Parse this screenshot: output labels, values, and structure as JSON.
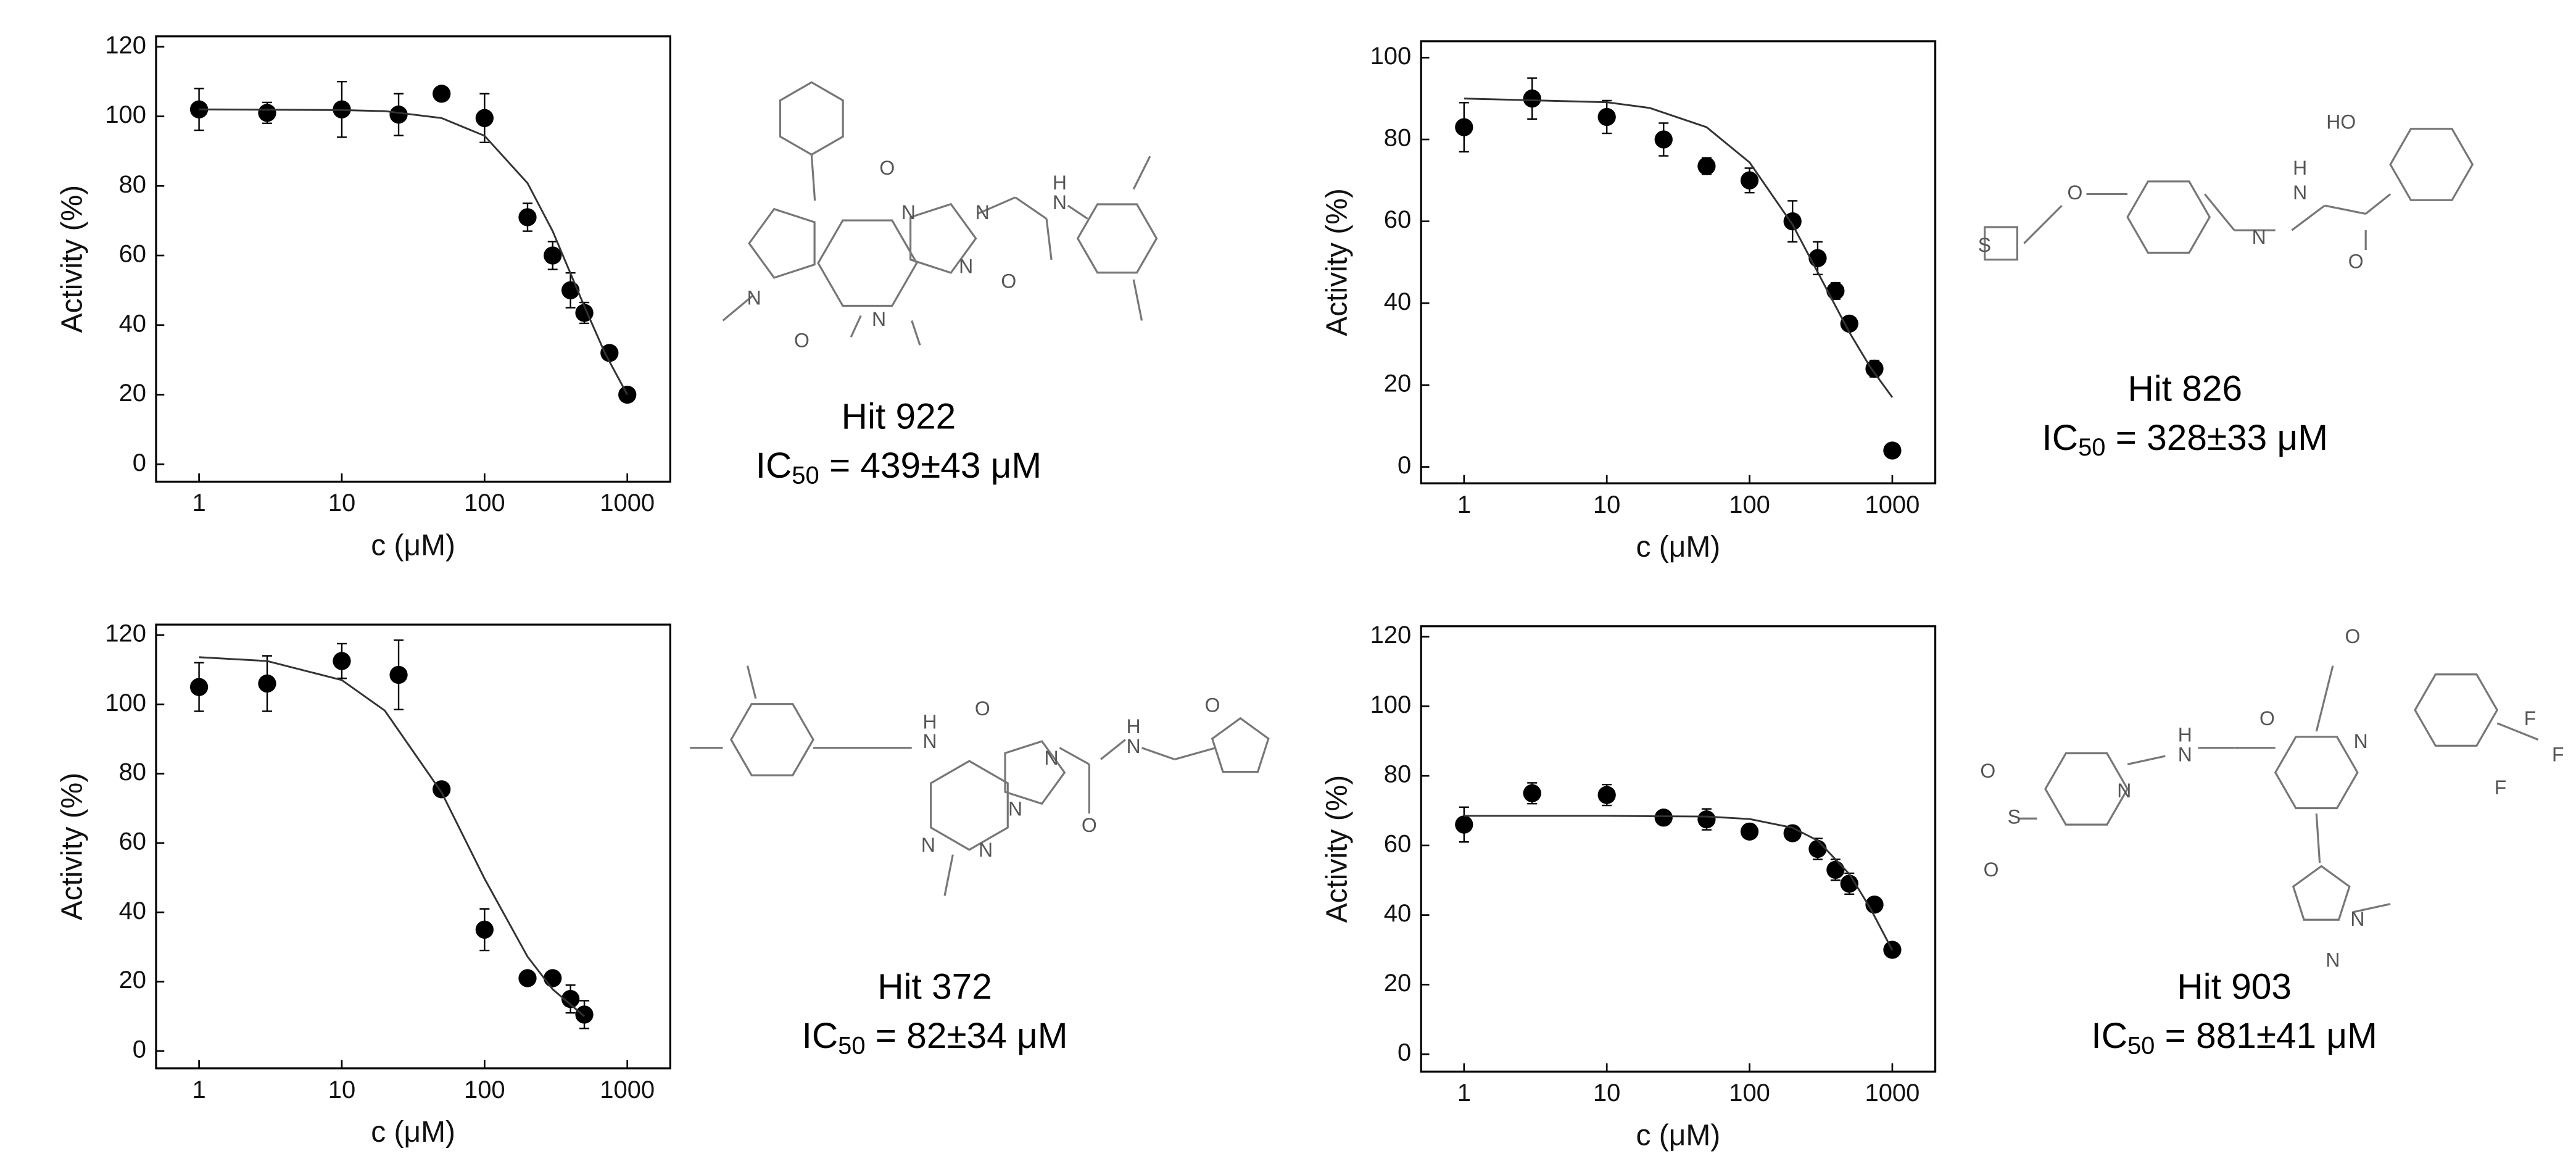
{
  "chart_data": [
    {
      "type": "scatter",
      "xlabel": "c (μM)",
      "ylabel": "Activity (%)",
      "xscale": "log",
      "xlim": [
        0.5,
        2000
      ],
      "xticks": [
        1,
        10,
        100,
        1000
      ],
      "ylim": [
        -5,
        123
      ],
      "yticks": [
        0,
        20,
        40,
        60,
        80,
        100,
        120
      ],
      "series": [
        {
          "x": [
            1,
            3,
            10,
            25,
            50,
            100,
            200,
            300,
            400,
            500,
            750,
            1000
          ],
          "values": [
            102,
            101,
            102,
            100.5,
            106.5,
            99.5,
            71,
            60,
            50,
            43.5,
            32,
            20
          ],
          "errors": [
            6,
            3,
            8,
            6,
            1,
            7,
            4,
            4,
            5,
            3,
            2,
            2
          ],
          "color": "#000000"
        },
        {
          "style": "line",
          "x": [
            1,
            10,
            20,
            50,
            100,
            200,
            300,
            500,
            700,
            1000
          ],
          "values": [
            102,
            101.8,
            101.5,
            99.5,
            94.4,
            80.8,
            67,
            45.4,
            31.8,
            20
          ],
          "color": "#333333"
        }
      ],
      "annotations": {
        "compound": "Hit 922",
        "ic50_prefix": "IC",
        "ic50_sub": "50",
        "ic50_text": " = 439±43 μM"
      },
      "structure_labels": [
        "O",
        "N",
        "N",
        "N",
        "N",
        "O",
        "N",
        "O",
        "H",
        "N"
      ]
    },
    {
      "type": "scatter",
      "xlabel": "c (μM)",
      "ylabel": "Activity (%)",
      "xscale": "log",
      "xlim": [
        0.5,
        2000
      ],
      "xticks": [
        1,
        10,
        100,
        1000
      ],
      "ylim": [
        -4,
        104
      ],
      "yticks": [
        0,
        20,
        40,
        60,
        80,
        100
      ],
      "series": [
        {
          "x": [
            1,
            3,
            10,
            25,
            50,
            100,
            200,
            300,
            400,
            500,
            750,
            1000
          ],
          "values": [
            83,
            90,
            85.5,
            80,
            73.5,
            70,
            60,
            51,
            43,
            35,
            24,
            4
          ],
          "errors": [
            6,
            5,
            4,
            4,
            2,
            3,
            5,
            4,
            2,
            1,
            2,
            1
          ],
          "color": "#000000"
        },
        {
          "style": "line",
          "x": [
            1,
            10,
            20,
            50,
            100,
            200,
            300,
            500,
            700,
            1000
          ],
          "values": [
            90,
            89.1,
            87.7,
            83,
            74.4,
            59.2,
            47.6,
            32.9,
            24.4,
            17
          ],
          "color": "#333333"
        }
      ],
      "annotations": {
        "compound": "Hit 826",
        "ic50_prefix": "IC",
        "ic50_sub": "50",
        "ic50_text": " = 328±33 μM"
      },
      "structure_labels": [
        "S",
        "O",
        "N",
        "H",
        "N",
        "HO",
        "O"
      ]
    },
    {
      "type": "scatter",
      "xlabel": "c (μM)",
      "ylabel": "Activity (%)",
      "xscale": "log",
      "xlim": [
        0.5,
        2000
      ],
      "xticks": [
        1,
        10,
        100,
        1000
      ],
      "ylim": [
        -5,
        123
      ],
      "yticks": [
        0,
        20,
        40,
        60,
        80,
        100,
        120
      ],
      "series": [
        {
          "x": [
            1,
            3,
            10,
            25,
            50,
            100,
            200,
            300,
            400,
            500
          ],
          "values": [
            105,
            106,
            112.5,
            108.5,
            75.5,
            35,
            21,
            21,
            15,
            10.5
          ],
          "errors": [
            7,
            8,
            5,
            10,
            1,
            6,
            1,
            1,
            4,
            4
          ],
          "color": "#000000"
        },
        {
          "style": "line",
          "x": [
            1,
            3,
            10,
            20,
            50,
            100,
            200,
            300,
            500
          ],
          "values": [
            113.6,
            112.5,
            107,
            98.2,
            74.6,
            49.7,
            27.2,
            17.8,
            10
          ],
          "color": "#333333"
        }
      ],
      "annotations": {
        "compound": "Hit 372",
        "ic50_prefix": "IC",
        "ic50_sub": "50",
        "ic50_text": " = 82±34 μM"
      },
      "structure_labels": [
        "H",
        "N",
        "O",
        "N",
        "N",
        "N",
        "N",
        "O",
        "H",
        "N",
        "O"
      ]
    },
    {
      "type": "scatter",
      "xlabel": "c (μM)",
      "ylabel": "Activity (%)",
      "xscale": "log",
      "xlim": [
        0.5,
        2000
      ],
      "xticks": [
        1,
        10,
        100,
        1000
      ],
      "ylim": [
        -5,
        123
      ],
      "yticks": [
        0,
        20,
        40,
        60,
        80,
        100,
        120
      ],
      "series": [
        {
          "x": [
            1,
            3,
            10,
            25,
            50,
            100,
            200,
            300,
            400,
            500,
            750,
            1000
          ],
          "values": [
            66,
            75,
            74.5,
            68,
            67.5,
            64,
            63.5,
            59,
            53,
            49,
            43,
            30
          ],
          "errors": [
            5,
            3,
            3,
            2,
            3,
            2,
            2,
            3,
            3,
            3,
            2,
            1
          ],
          "color": "#000000"
        },
        {
          "style": "line",
          "x": [
            1,
            10,
            50,
            100,
            200,
            300,
            500,
            700,
            1000
          ],
          "values": [
            68.5,
            68.5,
            68.3,
            67.6,
            65.1,
            61.4,
            51.8,
            42,
            29.9
          ],
          "color": "#333333"
        }
      ],
      "annotations": {
        "compound": "Hit 903",
        "ic50_prefix": "IC",
        "ic50_sub": "50",
        "ic50_text": " = 881±41 μM"
      },
      "structure_labels": [
        "O",
        "S",
        "O",
        "N",
        "H",
        "N",
        "O",
        "O",
        "N",
        "F",
        "F",
        "F",
        "N",
        "N"
      ]
    }
  ]
}
